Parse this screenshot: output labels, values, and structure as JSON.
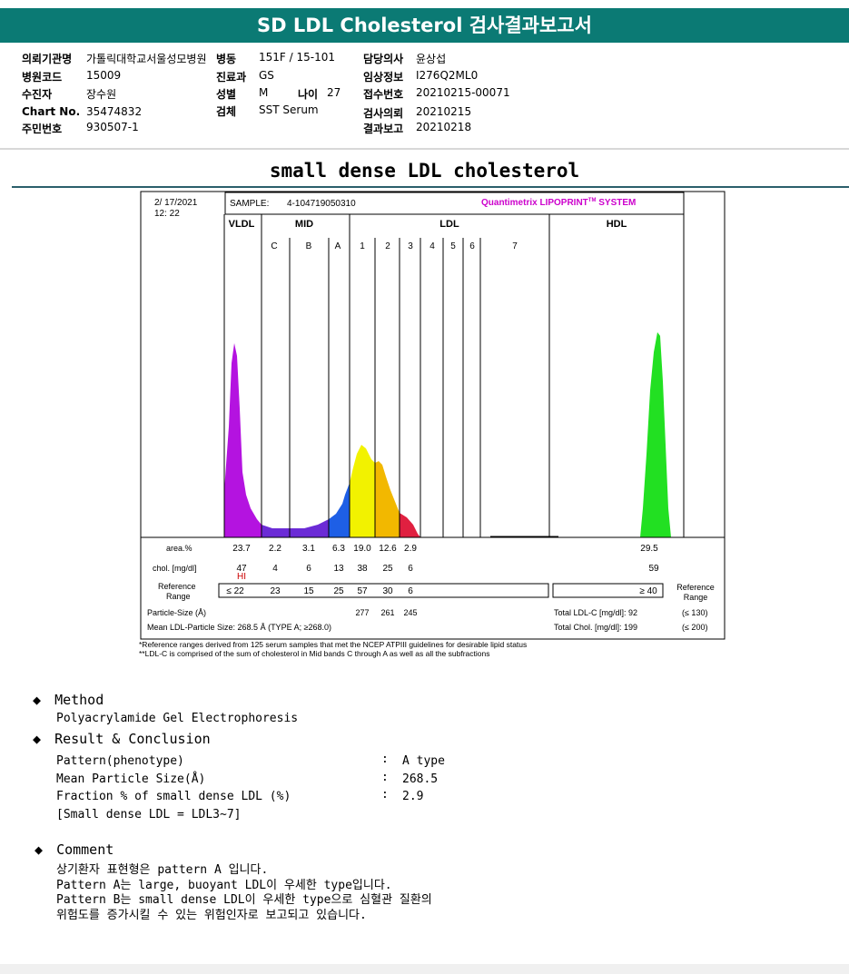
{
  "report_title": "SD LDL Cholesterol 검사결과보고서",
  "info": {
    "hospital": {
      "label": "의뢰기관명",
      "value": "가톨릭대학교서울성모병원"
    },
    "ward": {
      "label": "병동",
      "value": "151F / 15-101"
    },
    "doctor": {
      "label": "담당의사",
      "value": "윤상섭"
    },
    "code": {
      "label": "병원코드",
      "value": "15009"
    },
    "dept": {
      "label": "진료과",
      "value": "GS"
    },
    "clinical": {
      "label": "임상정보",
      "value": "I276Q2ML0"
    },
    "patient": {
      "label": "수진자",
      "value": "장수원"
    },
    "sex": {
      "label": "성별",
      "value": "M"
    },
    "age": {
      "label": "나이",
      "value": "27"
    },
    "receipt": {
      "label": "접수번호",
      "value": "20210215-00071"
    },
    "chart": {
      "label": "Chart No.",
      "value": "35474832"
    },
    "specimen": {
      "label": "검체",
      "value": "SST Serum"
    },
    "request": {
      "label": "검사의뢰",
      "value": "20210215"
    },
    "resident": {
      "label": "주민번호",
      "value": "930507-1"
    },
    "report": {
      "label": "결과보고",
      "value": "20210218"
    }
  },
  "section_title": "small dense LDL cholesterol",
  "lipoprint": {
    "date": "2/ 17/2021",
    "time": "12: 22",
    "sample_label": "SAMPLE:",
    "sample_id": "4-104719050310",
    "system_name": "Quantimetrix LIPOPRINT",
    "system_tm": "TM",
    "system_suffix": " SYSTEM",
    "group_vldl": "VLDL",
    "group_mid": "MID",
    "group_ldl": "LDL",
    "group_hdl": "HDL",
    "band_labels": [
      "C",
      "B",
      "A",
      "1",
      "2",
      "3",
      "4",
      "5",
      "6",
      "7"
    ],
    "row_area_label": "area.%",
    "row_chol_label": "chol. [mg/dl]",
    "ref_label_1": "Reference",
    "ref_label_2": "Range",
    "area_values": [
      "23.7",
      "2.2",
      "3.1",
      "6.3",
      "19.0",
      "12.6",
      "2.9",
      "29.5"
    ],
    "chol_values": [
      "47",
      "4",
      "6",
      "13",
      "38",
      "25",
      "6",
      "59"
    ],
    "hi_flag": "HI",
    "ref_values": [
      "≤  22",
      "23",
      "15",
      "25",
      "57",
      "30",
      "6",
      "≥ 40"
    ],
    "particle_size_label": "Particle-Size (Å)",
    "particle_sizes": [
      "277",
      "261",
      "245"
    ],
    "mean_size_text": "Mean LDL-Particle Size:  268.5 Å   (TYPE A; ≥268.0)",
    "total_ldl": "Total LDL-C [mg/dl]:  92",
    "total_ldl_ref": "(≤ 130)",
    "total_chol": "Total Chol. [mg/dl]:  199",
    "total_chol_ref": "(≤ 200)",
    "footnote_1": "*Reference ranges derived from 125 serum samples that met the NCEP ATPIII guidelines for desirable lipid status",
    "footnote_2": "**LDL-C is comprised of the sum of cholesterol in Mid bands C through A as well as all the subfractions"
  },
  "method": {
    "heading": "Method",
    "text": "Polyacrylamide Gel Electrophoresis"
  },
  "result": {
    "heading": "Result & Conclusion",
    "rows": [
      {
        "label": "Pattern(phenotype)",
        "sep": ":",
        "value": "A type"
      },
      {
        "label": "Mean Particle Size(Å)",
        "sep": ":",
        "value": "268.5"
      },
      {
        "label": "Fraction % of small dense LDL (%)",
        "sep": ":",
        "value": "2.9"
      }
    ],
    "note": "[Small dense LDL = LDL3~7]"
  },
  "comment": {
    "heading": "Comment",
    "lines": [
      "상기환자 표현형은 pattern A 입니다.",
      "Pattern A는 large, buoyant LDL이 우세한 type입니다.",
      "Pattern B는 small dense LDL이 우세한 type으로 심혈관 질환의",
      "위험도를 증가시킬 수 있는 위험인자로 보고되고 있습니다."
    ]
  },
  "colors": {
    "title_bar": "#0b7a74",
    "vldl": "#b413e0",
    "band_c_b": "#6b2bd6",
    "band_a": "#1e5fe6",
    "band_1": "#f2f200",
    "band_2": "#f2b800",
    "band_3": "#e02040",
    "hdl": "#22e022",
    "system_name": "#cc00cc",
    "hi_flag": "#cc0000"
  }
}
